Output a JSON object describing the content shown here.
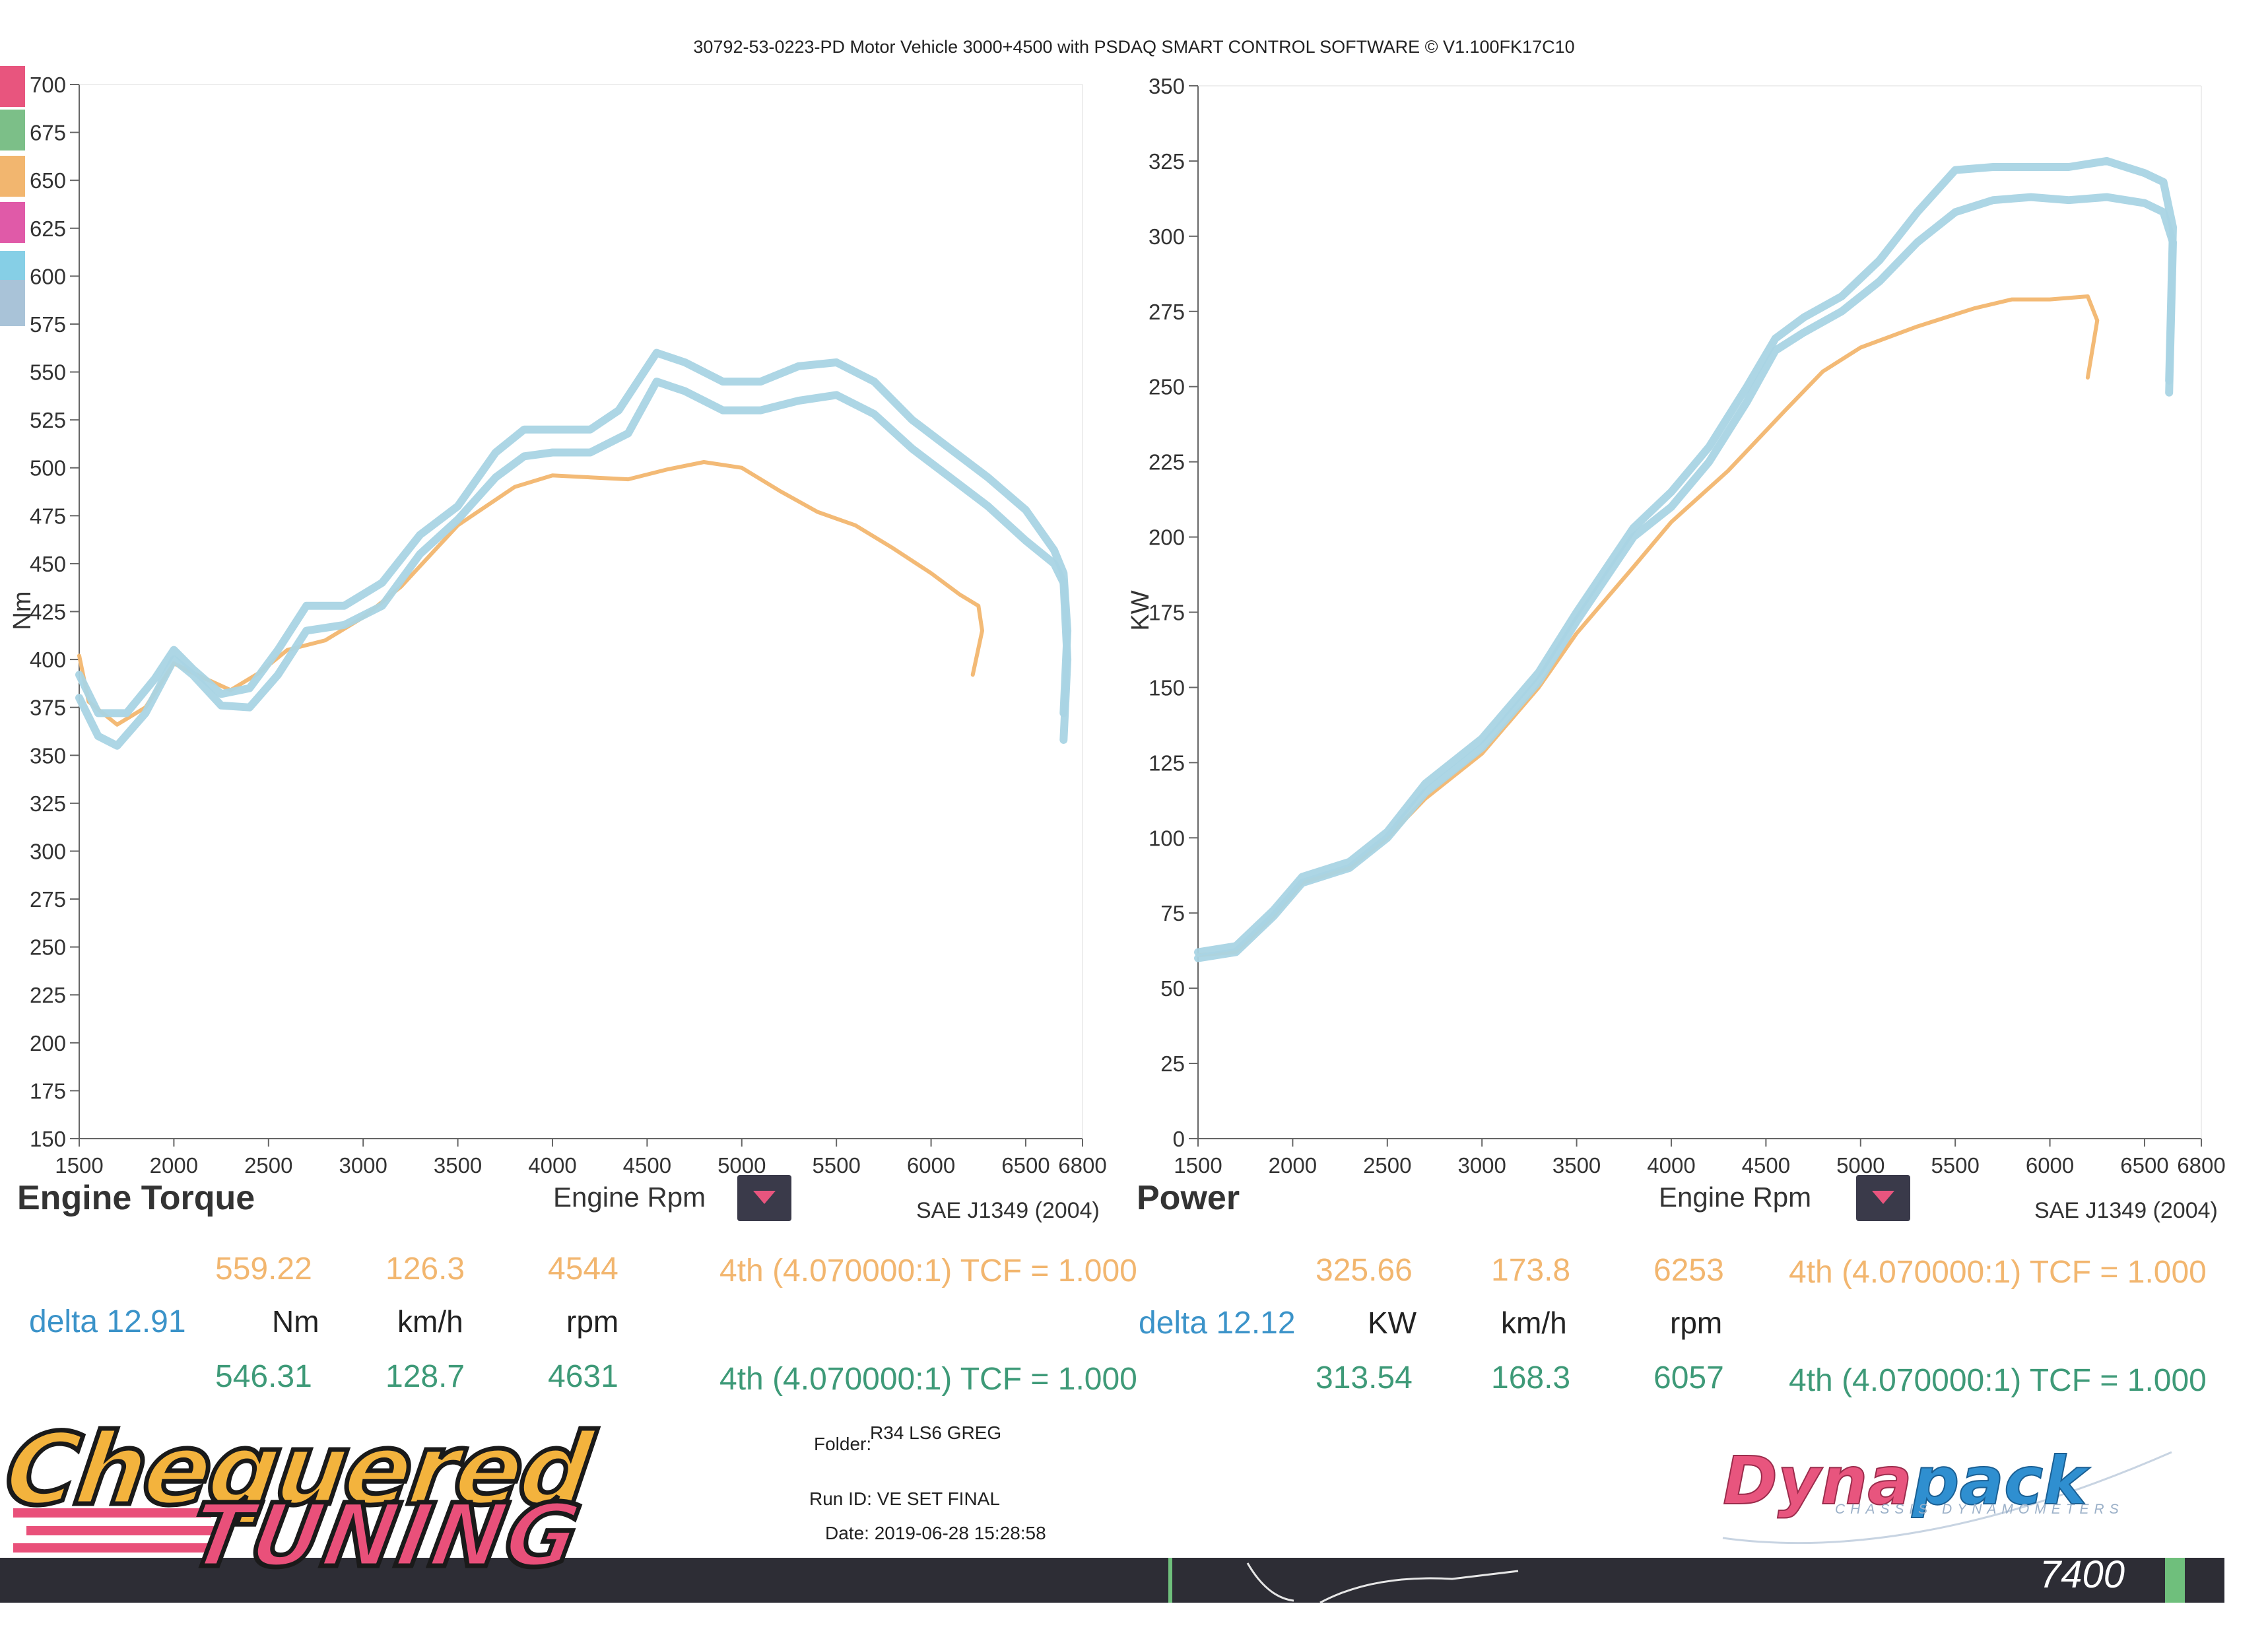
{
  "header": {
    "title": "30792-53-0223-PD Motor Vehicle 3000+4500 with PSDAQ SMART CONTROL SOFTWARE © V1.100FK17C10"
  },
  "colors": {
    "run_a": "#f2b66f",
    "run_b": "#a9d4e4",
    "axis": "#555555",
    "delta": "#3b93c9",
    "green": "#3e9a78"
  },
  "legend_swatches": [
    "#e8557e",
    "#7cbf88",
    "#f2b66f",
    "#e05aa8",
    "#86cfe6",
    "#a9c3d8"
  ],
  "torque_panel": {
    "name": "Engine Torque",
    "x_label": "Engine Rpm",
    "standard": "SAE J1349 (2004)",
    "run_a": {
      "value": "559.22",
      "speed": "126.3",
      "rpm": "4544",
      "gear": "4th (4.070000:1) TCF = 1.000"
    },
    "delta": "delta 12.91",
    "units": {
      "value": "Nm",
      "speed": "km/h",
      "rpm": "rpm"
    },
    "run_b": {
      "value": "546.31",
      "speed": "128.7",
      "rpm": "4631",
      "gear": "4th (4.070000:1) TCF = 1.000"
    }
  },
  "power_panel": {
    "name": "Power",
    "x_label": "Engine Rpm",
    "standard": "SAE J1349 (2004)",
    "run_a": {
      "value": "325.66",
      "speed": "173.8",
      "rpm": "6253",
      "gear": "4th (4.070000:1) TCF = 1.000"
    },
    "delta": "delta 12.12",
    "units": {
      "value": "KW",
      "speed": "km/h",
      "rpm": "rpm"
    },
    "run_b": {
      "value": "313.54",
      "speed": "168.3",
      "rpm": "6057",
      "gear": "4th (4.070000:1) TCF = 1.000"
    }
  },
  "footer": {
    "brand_line1": "Chequered",
    "brand_line2": "TUNING",
    "folder_label": "Folder:",
    "folder_value": "R34 LS6 GREG",
    "run_id": "Run ID: VE SET FINAL",
    "date": "Date: 2019-06-28 15:28:58",
    "dynapack_a": "Dyna",
    "dynapack_b": "pack",
    "dynapack_sub": "CHASSIS DYNAMOMETERS",
    "strip_text": "7400"
  },
  "chart_data": [
    {
      "type": "line",
      "xlabel": "Engine Rpm",
      "ylabel": "Nm",
      "xlim": [
        1500,
        6800
      ],
      "ylim": [
        150,
        700
      ],
      "x_ticks": [
        1500,
        2000,
        2500,
        3000,
        3500,
        4000,
        4500,
        5000,
        5500,
        6000,
        6500,
        6800
      ],
      "y_ticks": [
        150,
        175,
        200,
        225,
        250,
        275,
        300,
        325,
        350,
        375,
        400,
        425,
        450,
        475,
        500,
        525,
        550,
        575,
        600,
        625,
        650,
        675,
        700
      ],
      "series": [
        {
          "color": "#f2b66f",
          "x": [
            1500,
            1550,
            1700,
            1850,
            2000,
            2100,
            2300,
            2450,
            2600,
            2800,
            3000,
            3200,
            3500,
            3800,
            4000,
            4200,
            4400,
            4600,
            4800,
            5000,
            5200,
            5400,
            5600,
            5800,
            6000,
            6150,
            6250,
            6270,
            6220
          ],
          "y": [
            402,
            378,
            366,
            375,
            398,
            393,
            384,
            393,
            405,
            410,
            422,
            438,
            470,
            490,
            496,
            495,
            494,
            499,
            503,
            500,
            488,
            477,
            470,
            458,
            445,
            434,
            428,
            415,
            392
          ]
        },
        {
          "color": "#a9d4e4",
          "x": [
            1500,
            1600,
            1700,
            1850,
            2000,
            2100,
            2250,
            2400,
            2550,
            2700,
            2900,
            3100,
            3300,
            3500,
            3700,
            3850,
            4000,
            4200,
            4400,
            4550,
            4700,
            4900,
            5100,
            5300,
            5500,
            5700,
            5900,
            6100,
            6300,
            6500,
            6650,
            6700,
            6720,
            6700
          ],
          "y": [
            380,
            360,
            355,
            372,
            400,
            392,
            376,
            375,
            392,
            415,
            418,
            428,
            455,
            473,
            495,
            506,
            508,
            508,
            518,
            545,
            540,
            530,
            530,
            535,
            538,
            528,
            510,
            495,
            480,
            462,
            450,
            440,
            400,
            358
          ]
        },
        {
          "color": "#a9d4e4",
          "x": [
            1500,
            1600,
            1750,
            1900,
            2000,
            2100,
            2250,
            2400,
            2550,
            2700,
            2900,
            3100,
            3300,
            3500,
            3700,
            3850,
            4000,
            4200,
            4350,
            4550,
            4700,
            4900,
            5100,
            5300,
            5500,
            5700,
            5900,
            6100,
            6300,
            6500,
            6650,
            6700,
            6720,
            6700
          ],
          "y": [
            392,
            372,
            372,
            390,
            405,
            395,
            382,
            385,
            405,
            428,
            428,
            440,
            465,
            480,
            508,
            520,
            520,
            520,
            530,
            560,
            555,
            545,
            545,
            553,
            555,
            545,
            525,
            510,
            495,
            478,
            457,
            445,
            415,
            372
          ]
        }
      ]
    },
    {
      "type": "line",
      "xlabel": "Engine Rpm",
      "ylabel": "KW",
      "xlim": [
        1500,
        6800
      ],
      "ylim": [
        0,
        350
      ],
      "x_ticks": [
        1500,
        2000,
        2500,
        3000,
        3500,
        4000,
        4500,
        5000,
        5500,
        6000,
        6500,
        6800
      ],
      "y_ticks": [
        0,
        25,
        50,
        75,
        100,
        125,
        150,
        175,
        200,
        225,
        250,
        275,
        300,
        325,
        350
      ],
      "series": [
        {
          "color": "#f2b66f",
          "x": [
            1500,
            1700,
            1900,
            2050,
            2300,
            2500,
            2700,
            3000,
            3300,
            3500,
            3800,
            4000,
            4300,
            4600,
            4800,
            5000,
            5300,
            5600,
            5800,
            6000,
            6200,
            6250,
            6200
          ],
          "y": [
            61,
            62,
            74,
            85,
            90,
            100,
            113,
            128,
            150,
            168,
            190,
            205,
            222,
            242,
            255,
            263,
            270,
            276,
            279,
            279,
            280,
            272,
            253
          ]
        },
        {
          "color": "#a9d4e4",
          "x": [
            1500,
            1700,
            1900,
            2050,
            2300,
            2500,
            2700,
            3000,
            3300,
            3500,
            3800,
            4000,
            4200,
            4400,
            4550,
            4700,
            4900,
            5100,
            5300,
            5500,
            5700,
            5900,
            6100,
            6300,
            6500,
            6600,
            6650,
            6630
          ],
          "y": [
            60,
            62,
            74,
            85,
            90,
            100,
            115,
            130,
            152,
            172,
            200,
            210,
            225,
            245,
            262,
            268,
            275,
            285,
            298,
            308,
            312,
            313,
            312,
            313,
            311,
            308,
            298,
            248
          ]
        },
        {
          "color": "#a9d4e4",
          "x": [
            1500,
            1700,
            1900,
            2050,
            2300,
            2500,
            2700,
            3000,
            3300,
            3500,
            3800,
            4000,
            4200,
            4400,
            4550,
            4700,
            4900,
            5100,
            5300,
            5500,
            5700,
            5900,
            6100,
            6300,
            6500,
            6600,
            6650,
            6630
          ],
          "y": [
            62,
            64,
            76,
            87,
            92,
            102,
            118,
            133,
            155,
            175,
            203,
            215,
            230,
            250,
            266,
            273,
            280,
            292,
            308,
            322,
            323,
            323,
            323,
            325,
            321,
            318,
            303,
            252
          ]
        }
      ]
    }
  ]
}
